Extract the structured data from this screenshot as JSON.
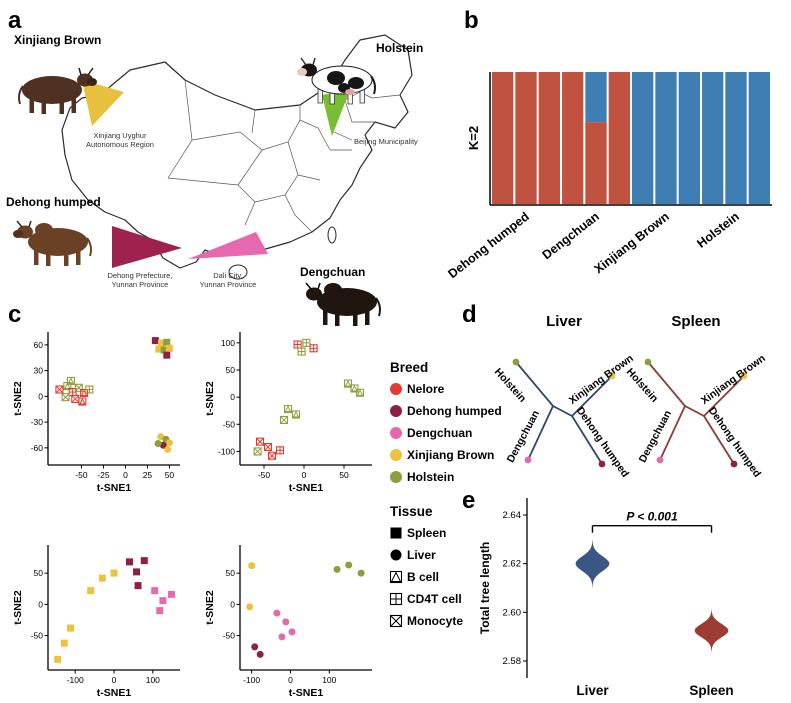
{
  "panel_labels": {
    "a": "a",
    "b": "b",
    "c": "c",
    "d": "d",
    "e": "e"
  },
  "colors": {
    "nelore": "#e03c31",
    "dehong_humped": "#8e2043",
    "dengchuan": "#e569ae",
    "xinjiang_brown": "#ecc23e",
    "holstein": "#8f9d3a",
    "liver_tree": "#31456e",
    "spleen_tree": "#8f3a33",
    "map_marker_xinjiang_brown": "#e7c13d",
    "map_marker_holstein": "#79bd33",
    "map_marker_dehong": "#9e2150",
    "map_marker_dengchuan": "#e868b0"
  },
  "panel_a": {
    "breed_xinjiang_brown": "Xinjiang Brown",
    "breed_holstein": "Holstein",
    "breed_dehong_humped": "Dehong humped",
    "breed_dengchuan": "Dengchuan",
    "region_xinjiang_1": "Xinjiang Uyghur",
    "region_xinjiang_2": "Autonomous Region",
    "region_beijing": "Beijing Municipality",
    "region_dehong_1": "Dehong Prefecture,",
    "region_dehong_2": "Yunnan Province",
    "region_dali_1": "Dali City,",
    "region_dali_2": "Yunnan Province"
  },
  "panel_d": {
    "liver_title": "Liver",
    "spleen_title": "Spleen",
    "tips": {
      "holstein": "Holstein",
      "xinjiang_brown": "Xinjiang Brown",
      "dengchuan": "Dengchuan",
      "dehong_humped": "Dehong humped"
    }
  },
  "legend": {
    "breed_title": "Breed",
    "breed_items": [
      {
        "label": "Nelore",
        "color_key": "nelore"
      },
      {
        "label": "Dehong humped",
        "color_key": "dehong_humped"
      },
      {
        "label": "Dengchuan",
        "color_key": "dengchuan"
      },
      {
        "label": "Xinjiang Brown",
        "color_key": "xinjiang_brown"
      },
      {
        "label": "Holstein",
        "color_key": "holstein"
      }
    ],
    "tissue_title": "Tissue",
    "tissue_items": [
      {
        "label": "Spleen",
        "shape": "square"
      },
      {
        "label": "Liver",
        "shape": "circle"
      },
      {
        "label": "B cell",
        "shape": "square-triangle"
      },
      {
        "label": "CD4T cell",
        "shape": "square-plus"
      },
      {
        "label": "Monocyte",
        "shape": "square-x"
      }
    ]
  },
  "chart_data": [
    {
      "id": "admixture",
      "type": "stacked-bar",
      "k_label": "K=2",
      "ancestry_colors": [
        "#bf5340",
        "#3e7eb3"
      ],
      "bars": [
        {
          "group": "Dehong humped",
          "q_red": 1.0
        },
        {
          "group": "Dehong humped",
          "q_red": 1.0
        },
        {
          "group": "Dehong humped",
          "q_red": 1.0
        },
        {
          "group": "Dengchuan",
          "q_red": 1.0
        },
        {
          "group": "Dengchuan",
          "q_red": 0.62
        },
        {
          "group": "Dengchuan",
          "q_red": 1.0
        },
        {
          "group": "Xinjiang Brown",
          "q_red": 0.0
        },
        {
          "group": "Xinjiang Brown",
          "q_red": 0.0
        },
        {
          "group": "Xinjiang Brown",
          "q_red": 0.0
        },
        {
          "group": "Holstein",
          "q_red": 0.0
        },
        {
          "group": "Holstein",
          "q_red": 0.0
        },
        {
          "group": "Holstein",
          "q_red": 0.0
        }
      ],
      "group_labels": [
        "Dehong humped",
        "Dengchuan",
        "Xinjiang Brown",
        "Holstein"
      ]
    },
    {
      "id": "tsne1",
      "type": "scatter",
      "xlabel": "t-SNE1",
      "ylabel": "t-SNE2",
      "xlim": [
        -88,
        62
      ],
      "ylim": [
        -80,
        75
      ],
      "xticks": [
        -50,
        -25,
        0,
        25,
        50
      ],
      "yticks": [
        -60,
        -30,
        0,
        30,
        60
      ],
      "points": [
        {
          "x": 34,
          "y": 65,
          "breed": "dehong_humped",
          "shape": "square"
        },
        {
          "x": 41,
          "y": 62,
          "breed": "xinjiang_brown",
          "shape": "square"
        },
        {
          "x": 47,
          "y": 63,
          "breed": "holstein",
          "shape": "square"
        },
        {
          "x": 38,
          "y": 55,
          "breed": "xinjiang_brown",
          "shape": "square"
        },
        {
          "x": 44,
          "y": 54,
          "breed": "holstein",
          "shape": "square"
        },
        {
          "x": 50,
          "y": 56,
          "breed": "xinjiang_brown",
          "shape": "square"
        },
        {
          "x": 47,
          "y": 48,
          "breed": "dehong_humped",
          "shape": "square"
        },
        {
          "x": 40,
          "y": -47,
          "breed": "xinjiang_brown",
          "shape": "circle"
        },
        {
          "x": 46,
          "y": -50,
          "breed": "holstein",
          "shape": "circle"
        },
        {
          "x": 50,
          "y": -54,
          "breed": "xinjiang_brown",
          "shape": "circle"
        },
        {
          "x": 43,
          "y": -57,
          "breed": "dehong_humped",
          "shape": "circle"
        },
        {
          "x": 37,
          "y": -55,
          "breed": "holstein",
          "shape": "circle"
        },
        {
          "x": 48,
          "y": -62,
          "breed": "xinjiang_brown",
          "shape": "circle"
        },
        {
          "x": -75,
          "y": 8,
          "breed": "nelore",
          "shape": "square-x"
        },
        {
          "x": -66,
          "y": 12,
          "breed": "holstein",
          "shape": "square-triangle"
        },
        {
          "x": -60,
          "y": 5,
          "breed": "nelore",
          "shape": "square-plus"
        },
        {
          "x": -53,
          "y": 10,
          "breed": "holstein",
          "shape": "square-x"
        },
        {
          "x": -47,
          "y": 4,
          "breed": "nelore",
          "shape": "square-triangle"
        },
        {
          "x": -41,
          "y": 8,
          "breed": "holstein",
          "shape": "square-plus"
        },
        {
          "x": -57,
          "y": -3,
          "breed": "nelore",
          "shape": "square-x"
        },
        {
          "x": -68,
          "y": -1,
          "breed": "holstein",
          "shape": "square-x"
        },
        {
          "x": -49,
          "y": -6,
          "breed": "nelore",
          "shape": "square-triangle"
        },
        {
          "x": -62,
          "y": 18,
          "breed": "holstein",
          "shape": "square-triangle"
        }
      ]
    },
    {
      "id": "tsne2",
      "type": "scatter",
      "xlabel": "t-SNE1",
      "ylabel": "t-SNE2",
      "xlim": [
        -80,
        85
      ],
      "ylim": [
        -125,
        120
      ],
      "xticks": [
        -50,
        0,
        50
      ],
      "yticks": [
        -100,
        -50,
        0,
        50,
        100
      ],
      "points": [
        {
          "x": -8,
          "y": 97,
          "breed": "nelore",
          "shape": "square-plus"
        },
        {
          "x": 3,
          "y": 100,
          "breed": "holstein",
          "shape": "square-plus"
        },
        {
          "x": 12,
          "y": 90,
          "breed": "nelore",
          "shape": "square-plus"
        },
        {
          "x": -3,
          "y": 84,
          "breed": "holstein",
          "shape": "square-plus"
        },
        {
          "x": 55,
          "y": 25,
          "breed": "holstein",
          "shape": "square-triangle"
        },
        {
          "x": 63,
          "y": 16,
          "breed": "holstein",
          "shape": "square-triangle"
        },
        {
          "x": 70,
          "y": 8,
          "breed": "holstein",
          "shape": "square-triangle"
        },
        {
          "x": -20,
          "y": -22,
          "breed": "holstein",
          "shape": "square-triangle"
        },
        {
          "x": -10,
          "y": -32,
          "breed": "holstein",
          "shape": "square-triangle"
        },
        {
          "x": -25,
          "y": -42,
          "breed": "holstein",
          "shape": "square-x"
        },
        {
          "x": -55,
          "y": -82,
          "breed": "nelore",
          "shape": "square-x"
        },
        {
          "x": -45,
          "y": -92,
          "breed": "nelore",
          "shape": "square-x"
        },
        {
          "x": -58,
          "y": -100,
          "breed": "holstein",
          "shape": "square-x"
        },
        {
          "x": -40,
          "y": -108,
          "breed": "nelore",
          "shape": "square-x"
        },
        {
          "x": -30,
          "y": -98,
          "breed": "nelore",
          "shape": "square-plus"
        }
      ]
    },
    {
      "id": "tsne3",
      "type": "scatter",
      "xlabel": "t-SNE1",
      "ylabel": "t-SNE2",
      "xlim": [
        -170,
        170
      ],
      "ylim": [
        -105,
        95
      ],
      "xticks": [
        -100,
        0,
        100
      ],
      "yticks": [
        -50,
        0,
        50
      ],
      "points": [
        {
          "x": -145,
          "y": -88,
          "breed": "xinjiang_brown",
          "shape": "square"
        },
        {
          "x": -128,
          "y": -62,
          "breed": "xinjiang_brown",
          "shape": "square"
        },
        {
          "x": -112,
          "y": -38,
          "breed": "xinjiang_brown",
          "shape": "square"
        },
        {
          "x": -60,
          "y": 22,
          "breed": "xinjiang_brown",
          "shape": "square"
        },
        {
          "x": -30,
          "y": 42,
          "breed": "xinjiang_brown",
          "shape": "square"
        },
        {
          "x": 0,
          "y": 50,
          "breed": "xinjiang_brown",
          "shape": "square"
        },
        {
          "x": 40,
          "y": 68,
          "breed": "dehong_humped",
          "shape": "square"
        },
        {
          "x": 58,
          "y": 52,
          "breed": "dehong_humped",
          "shape": "square"
        },
        {
          "x": 78,
          "y": 70,
          "breed": "dehong_humped",
          "shape": "square"
        },
        {
          "x": 62,
          "y": 30,
          "breed": "dehong_humped",
          "shape": "square"
        },
        {
          "x": 105,
          "y": 22,
          "breed": "dengchuan",
          "shape": "square"
        },
        {
          "x": 126,
          "y": 6,
          "breed": "dengchuan",
          "shape": "square"
        },
        {
          "x": 118,
          "y": -10,
          "breed": "dengchuan",
          "shape": "square"
        },
        {
          "x": 148,
          "y": 16,
          "breed": "dengchuan",
          "shape": "square"
        }
      ]
    },
    {
      "id": "tsne4",
      "type": "scatter",
      "xlabel": "t-SNE1",
      "ylabel": "t-SNE2",
      "xlim": [
        -130,
        210
      ],
      "ylim": [
        -105,
        95
      ],
      "xticks": [
        -100,
        0,
        100
      ],
      "yticks": [
        -50,
        0,
        50
      ],
      "points": [
        {
          "x": -100,
          "y": 62,
          "breed": "xinjiang_brown",
          "shape": "circle"
        },
        {
          "x": -105,
          "y": -4,
          "breed": "xinjiang_brown",
          "shape": "circle"
        },
        {
          "x": -35,
          "y": -14,
          "breed": "dengchuan",
          "shape": "circle"
        },
        {
          "x": -12,
          "y": -28,
          "breed": "dengchuan",
          "shape": "circle"
        },
        {
          "x": 4,
          "y": -44,
          "breed": "dengchuan",
          "shape": "circle"
        },
        {
          "x": -22,
          "y": -52,
          "breed": "dengchuan",
          "shape": "circle"
        },
        {
          "x": -92,
          "y": -68,
          "breed": "dehong_humped",
          "shape": "circle"
        },
        {
          "x": -78,
          "y": -80,
          "breed": "dehong_humped",
          "shape": "circle"
        },
        {
          "x": 120,
          "y": 56,
          "breed": "holstein",
          "shape": "circle"
        },
        {
          "x": 150,
          "y": 63,
          "breed": "holstein",
          "shape": "circle"
        },
        {
          "x": 182,
          "y": 50,
          "breed": "holstein",
          "shape": "circle"
        }
      ]
    },
    {
      "id": "violin",
      "type": "violin",
      "ylabel": "Total tree length",
      "ylim": [
        2.573,
        2.647
      ],
      "yticks": [
        "2.58",
        "2.60",
        "2.62",
        "2.64"
      ],
      "annotation": "P < 0.001",
      "categories": [
        {
          "label": "Liver",
          "color": "#3a5683",
          "center": 2.62,
          "spread": 0.01,
          "max_width": 17
        },
        {
          "label": "Spleen",
          "color": "#9d3c31",
          "center": 2.5925,
          "spread": 0.009,
          "max_width": 17
        }
      ]
    }
  ]
}
